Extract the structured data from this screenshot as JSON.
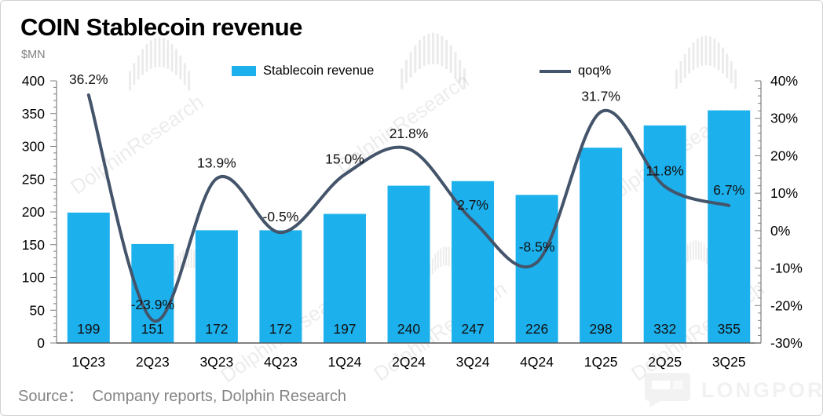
{
  "header": {
    "title": "COIN Stablecoin revenue"
  },
  "source": {
    "text": "Source：  Company reports, Dolphin Research"
  },
  "watermark": {
    "text": "DolphinResearch"
  },
  "brand_watermark": {
    "text": "LONGPORT"
  },
  "chart_data": {
    "type": "combo-bar-line",
    "title": "COIN Stablecoin revenue",
    "categories": [
      "1Q23",
      "2Q23",
      "3Q23",
      "4Q23",
      "1Q24",
      "2Q24",
      "3Q24",
      "4Q24",
      "1Q25",
      "2Q25",
      "3Q25"
    ],
    "series": [
      {
        "name": "Stablecoin revenue",
        "chart_type": "bar",
        "axis": "left",
        "color": "#1CB0EC",
        "values": [
          199,
          151,
          172,
          172,
          197,
          240,
          247,
          226,
          298,
          332,
          355
        ],
        "data_labels": [
          "199",
          "151",
          "172",
          "172",
          "197",
          "240",
          "247",
          "226",
          "298",
          "332",
          "355"
        ]
      },
      {
        "name": "qoq%",
        "chart_type": "line",
        "axis": "right",
        "color": "#44546A",
        "smooth": true,
        "values": [
          36.2,
          -23.9,
          13.9,
          -0.5,
          15.0,
          21.8,
          2.7,
          -8.5,
          31.7,
          11.8,
          6.7
        ],
        "data_labels": [
          "36.2%",
          "-23.9%",
          "13.9%",
          "-0.5%",
          "15.0%",
          "21.8%",
          "2.7%",
          "-8.5%",
          "31.7%",
          "11.8%",
          "6.7%"
        ]
      }
    ],
    "left_axis": {
      "title": "$MN",
      "min": 0,
      "max": 400,
      "minor_tick_step": 10,
      "tick_values": [
        0,
        50,
        100,
        150,
        200,
        250,
        300,
        350,
        400
      ],
      "tick_labels": [
        "0",
        "50",
        "100",
        "150",
        "200",
        "250",
        "300",
        "350",
        "400"
      ]
    },
    "right_axis": {
      "min": -30,
      "max": 40,
      "minor_tick_step": 2,
      "tick_values": [
        40,
        30,
        20,
        10,
        0,
        -10,
        -20,
        -30
      ],
      "tick_labels": [
        "40%",
        "30%",
        "20%",
        "10%",
        "0%",
        "-10%",
        "-20%",
        "-30%"
      ]
    },
    "grid": false,
    "legend_position": "top-center",
    "axis_color": "#808080",
    "text_color": "#000000"
  }
}
